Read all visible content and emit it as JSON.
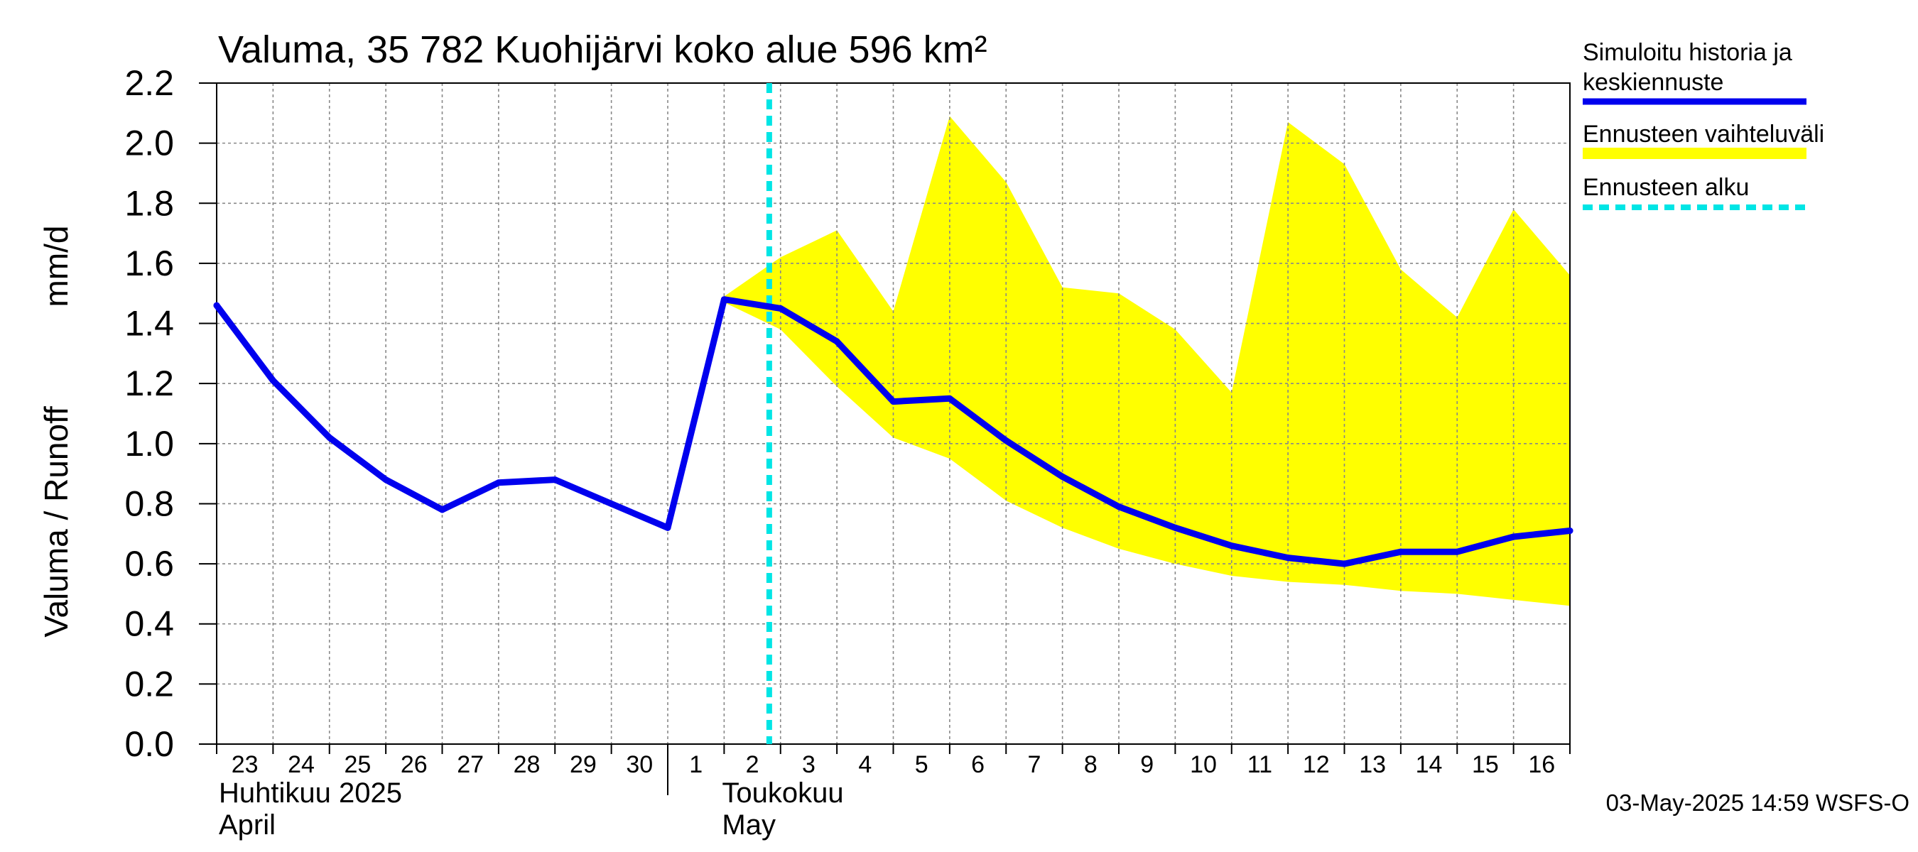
{
  "chart_data": {
    "type": "line",
    "title": "Valuma, 35 782 Kuohijärvi koko alue 596 km²",
    "ylabel_left": "Valuma / Runoff",
    "ylabel_right": "mm/d",
    "ylim": [
      0,
      2.2
    ],
    "yticks": [
      "0.0",
      "0.2",
      "0.4",
      "0.6",
      "0.8",
      "1.0",
      "1.2",
      "1.4",
      "1.6",
      "1.8",
      "2.0",
      "2.2"
    ],
    "x_days": [
      "23",
      "24",
      "25",
      "26",
      "27",
      "28",
      "29",
      "30",
      "1",
      "2",
      "3",
      "4",
      "5",
      "6",
      "7",
      "8",
      "9",
      "10",
      "11",
      "12",
      "13",
      "14",
      "15",
      "16"
    ],
    "month_labels": [
      {
        "line1": "Huhtikuu  2025",
        "line2": "April"
      },
      {
        "line1": "Toukokuu",
        "line2": "May"
      }
    ],
    "forecast_start_index": 9.8,
    "series": [
      {
        "name": "Simuloitu historia ja keskiennuste",
        "color": "#0000ee",
        "x": [
          0,
          1,
          2,
          3,
          4,
          5,
          6,
          7,
          8,
          9,
          10,
          11,
          12,
          13,
          14,
          15,
          16,
          17,
          18,
          19,
          20,
          21,
          22,
          23,
          24
        ],
        "values": [
          1.46,
          1.21,
          1.02,
          0.88,
          0.78,
          0.87,
          0.88,
          0.8,
          0.72,
          1.48,
          1.45,
          1.34,
          1.14,
          1.15,
          1.01,
          0.89,
          0.79,
          0.72,
          0.66,
          0.62,
          0.6,
          0.64,
          0.64,
          0.69,
          0.71
        ]
      }
    ],
    "band": {
      "name": "Ennusteen vaihteluväli",
      "color": "#ffff00",
      "x": [
        9,
        10,
        11,
        12,
        13,
        14,
        15,
        16,
        17,
        18,
        19,
        20,
        21,
        22,
        23,
        24
      ],
      "upper": [
        1.49,
        1.62,
        1.71,
        1.44,
        2.09,
        1.87,
        1.52,
        1.5,
        1.38,
        1.17,
        2.07,
        1.93,
        1.58,
        1.42,
        1.78,
        1.56
      ],
      "lower": [
        1.47,
        1.38,
        1.19,
        1.02,
        0.95,
        0.81,
        0.72,
        0.65,
        0.6,
        0.56,
        0.54,
        0.53,
        0.51,
        0.5,
        0.48,
        0.46
      ]
    },
    "legend": {
      "placement": "right",
      "entries": [
        {
          "label": "Simuloitu historia ja\nkeskiennuste",
          "color": "#0000ee",
          "style": "solid"
        },
        {
          "label": "Ennusteen vaihteluväli",
          "color": "#ffff00",
          "style": "solid"
        },
        {
          "label": "Ennusteen alku",
          "color": "#00e5e5",
          "style": "dashed"
        }
      ]
    },
    "grid": true,
    "footer": "03-May-2025 14:59 WSFS-O"
  }
}
